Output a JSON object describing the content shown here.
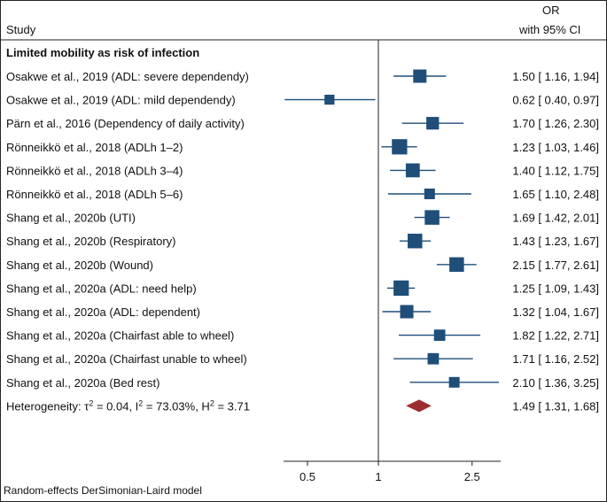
{
  "header": {
    "study_label": "Study",
    "or_label": "OR",
    "ci_label": "with 95% CI"
  },
  "section_title": "Limited mobility as risk of infection",
  "footer_note": "Random-effects DerSimonian-Laird model",
  "colors": {
    "marker": "#1f4e79",
    "diamond": "#9b2d30",
    "line": "#111111"
  },
  "chart_data": {
    "type": "forest",
    "title": "Limited mobility as risk of infection",
    "xscale": "log",
    "xlim": [
      0.4,
      3.4
    ],
    "reference": 1,
    "xticks": [
      0.5,
      1,
      2.5
    ],
    "xtick_labels": [
      "0.5",
      "1",
      "2.5"
    ],
    "studies": [
      {
        "label": "Osakwe et al., 2019 (ADL: severe dependendy)",
        "or": 1.5,
        "lo": 1.16,
        "hi": 1.94,
        "weight": 1.0,
        "text": "1.50 [ 1.16, 1.94]"
      },
      {
        "label": "Osakwe et al., 2019 (ADL: mild dependendy)",
        "or": 0.62,
        "lo": 0.4,
        "hi": 0.97,
        "weight": 0.75,
        "text": "0.62 [ 0.40, 0.97]"
      },
      {
        "label": "Pärn et al., 2016 (Dependency of daily activity)",
        "or": 1.7,
        "lo": 1.26,
        "hi": 2.3,
        "weight": 0.95,
        "text": "1.70 [ 1.26, 2.30]"
      },
      {
        "label": "Rönneikkö et al., 2018 (ADLh 1–2)",
        "or": 1.23,
        "lo": 1.03,
        "hi": 1.46,
        "weight": 1.15,
        "text": "1.23 [ 1.03, 1.46]"
      },
      {
        "label": "Rönneikkö et al., 2018 (ADLh 3–4)",
        "or": 1.4,
        "lo": 1.12,
        "hi": 1.75,
        "weight": 1.05,
        "text": "1.40 [ 1.12, 1.75]"
      },
      {
        "label": "Rönneikkö et al., 2018 (ADLh 5–6)",
        "or": 1.65,
        "lo": 1.1,
        "hi": 2.48,
        "weight": 0.8,
        "text": "1.65 [ 1.10, 2.48]"
      },
      {
        "label": "Shang et al., 2020b (UTI)",
        "or": 1.69,
        "lo": 1.42,
        "hi": 2.01,
        "weight": 1.1,
        "text": "1.69 [ 1.42, 2.01]"
      },
      {
        "label": "Shang et al., 2020b (Respiratory)",
        "or": 1.43,
        "lo": 1.23,
        "hi": 1.67,
        "weight": 1.1,
        "text": "1.43 [ 1.23, 1.67]"
      },
      {
        "label": "Shang et al., 2020b (Wound)",
        "or": 2.15,
        "lo": 1.77,
        "hi": 2.61,
        "weight": 1.1,
        "text": "2.15 [ 1.77, 2.61]"
      },
      {
        "label": "Shang et al., 2020a (ADL: need help)",
        "or": 1.25,
        "lo": 1.09,
        "hi": 1.43,
        "weight": 1.15,
        "text": "1.25 [ 1.09, 1.43]"
      },
      {
        "label": "Shang et al., 2020a (ADL: dependent)",
        "or": 1.32,
        "lo": 1.04,
        "hi": 1.67,
        "weight": 1.0,
        "text": "1.32 [ 1.04, 1.67]"
      },
      {
        "label": "Shang et al., 2020a (Chairfast able to wheel)",
        "or": 1.82,
        "lo": 1.22,
        "hi": 2.71,
        "weight": 0.85,
        "text": "1.82 [ 1.22, 2.71]"
      },
      {
        "label": "Shang et al., 2020a (Chairfast unable to wheel)",
        "or": 1.71,
        "lo": 1.16,
        "hi": 2.52,
        "weight": 0.85,
        "text": "1.71 [ 1.16, 2.52]"
      },
      {
        "label": "Shang et al., 2020a (Bed rest)",
        "or": 2.1,
        "lo": 1.36,
        "hi": 3.25,
        "weight": 0.8,
        "text": "2.10 [ 1.36, 3.25]"
      }
    ],
    "overall": {
      "label_prefix": "Heterogeneity: τ",
      "label_suffix": " = 0.04, I",
      "label_suffix2": " = 73.03%, H",
      "label_suffix3": " = 3.71",
      "superscript": "2",
      "or": 1.49,
      "lo": 1.31,
      "hi": 1.68,
      "text": "1.49 [ 1.31, 1.68]"
    }
  }
}
